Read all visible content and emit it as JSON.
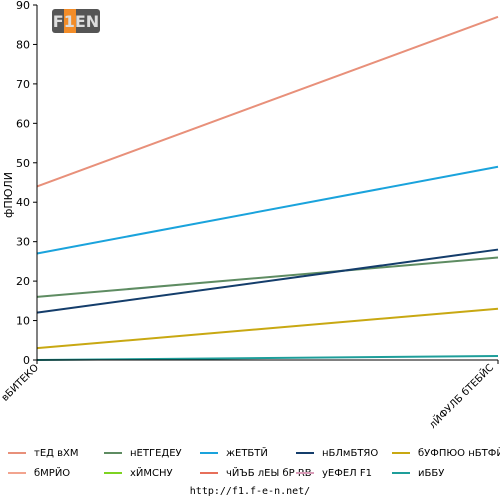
{
  "logo_text": "F1EN",
  "source_url": "http://f1.f-e-n.net/",
  "chart_data": {
    "type": "line",
    "title": "",
    "xlabel": "",
    "ylabel": "фПЮЛИ",
    "ylim": [
      0,
      90
    ],
    "yticks": [
      0,
      10,
      20,
      30,
      40,
      50,
      60,
      70,
      80,
      90
    ],
    "grid": false,
    "legend_position": "bottom",
    "categories": [
      "вБИТЕКО",
      "лЙФУЛБ бТЕБЙС"
    ],
    "series": [
      {
        "name": "тЕД вХМ",
        "color": "#e8907a",
        "values": [
          44,
          87
        ]
      },
      {
        "name": "нЕТГЕДЕУ",
        "color": "#5e8c62",
        "values": [
          16,
          26
        ]
      },
      {
        "name": "жЕТБТЙ",
        "color": "#1aa3dc",
        "values": [
          27,
          49
        ]
      },
      {
        "name": "нБЛмБТЯО",
        "color": "#143d6b",
        "values": [
          12,
          28
        ]
      },
      {
        "name": "бУФПЮО нБТФЙО",
        "color": "#c8a812",
        "values": [
          3,
          13
        ]
      },
      {
        "name": "бМРЙО",
        "color": "#f2a48f",
        "values": [
          null,
          null
        ]
      },
      {
        "name": "хЙМСНУ",
        "color": "#7ed321",
        "values": [
          null,
          null
        ]
      },
      {
        "name": "чЙЪБ лЕЫ бР RB",
        "color": "#e76f5a",
        "values": [
          null,
          null
        ]
      },
      {
        "name": "уЕФЕЛ F1",
        "color": "#d99bb8",
        "values": [
          null,
          null
        ]
      },
      {
        "name": "иББУ",
        "color": "#1e9e9a",
        "values": [
          0,
          1
        ]
      }
    ]
  }
}
